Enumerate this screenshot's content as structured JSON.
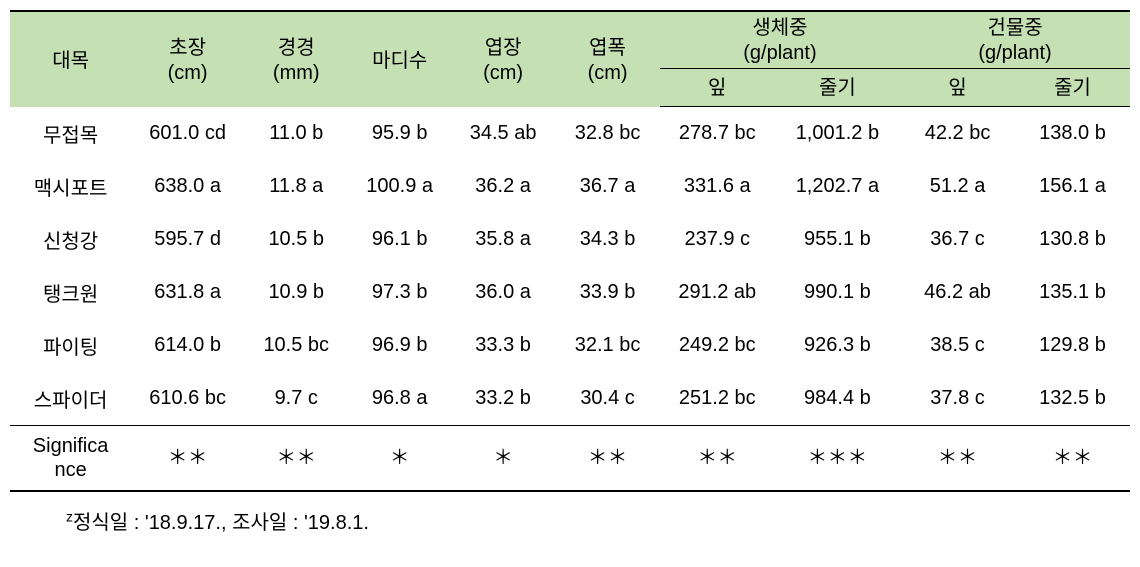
{
  "table": {
    "background_color": "#ffffff",
    "header_background_color": "#c5e0b3",
    "text_color": "#000000",
    "border_color": "#000000",
    "font_size_pt": 15,
    "columns": [
      {
        "label": "대목",
        "unit": ""
      },
      {
        "label": "초장",
        "unit": "(cm)"
      },
      {
        "label": "경경",
        "unit": "(mm)"
      },
      {
        "label": "마디수",
        "unit": ""
      },
      {
        "label": "엽장",
        "unit": "(cm)"
      },
      {
        "label": "엽폭",
        "unit": "(cm)"
      }
    ],
    "group_columns": [
      {
        "label": "생체중",
        "unit": "(g/plant)",
        "sub": [
          "잎",
          "줄기"
        ]
      },
      {
        "label": "건물중",
        "unit": "(g/plant)",
        "sub": [
          "잎",
          "줄기"
        ]
      }
    ],
    "rows": [
      {
        "c0": "무접목",
        "c1": "601.0 cd",
        "c2": "11.0 b",
        "c3": "95.9 b",
        "c4": "34.5 ab",
        "c5": "32.8 bc",
        "c6": "278.7 bc",
        "c7": "1,001.2 b",
        "c8": "42.2 bc",
        "c9": "138.0 b"
      },
      {
        "c0": "맥시포트",
        "c1": "638.0 a",
        "c2": "11.8 a",
        "c3": "100.9 a",
        "c4": "36.2 a",
        "c5": "36.7 a",
        "c6": "331.6 a",
        "c7": "1,202.7 a",
        "c8": "51.2 a",
        "c9": "156.1 a"
      },
      {
        "c0": "신청강",
        "c1": "595.7 d",
        "c2": "10.5 b",
        "c3": "96.1 b",
        "c4": "35.8 a",
        "c5": "34.3 b",
        "c6": "237.9 c",
        "c7": "955.1 b",
        "c8": "36.7 c",
        "c9": "130.8 b"
      },
      {
        "c0": "탱크원",
        "c1": "631.8 a",
        "c2": "10.9 b",
        "c3": "97.3 b",
        "c4": "36.0 a",
        "c5": "33.9 b",
        "c6": "291.2 ab",
        "c7": "990.1 b",
        "c8": "46.2 ab",
        "c9": "135.1 b"
      },
      {
        "c0": "파이팅",
        "c1": "614.0 b",
        "c2": "10.5 bc",
        "c3": "96.9 b",
        "c4": "33.3 b",
        "c5": "32.1 bc",
        "c6": "249.2 bc",
        "c7": "926.3 b",
        "c8": "38.5 c",
        "c9": "129.8 b"
      },
      {
        "c0": "스파이더",
        "c1": "610.6 bc",
        "c2": "9.7 c",
        "c3": "96.8 a",
        "c4": "33.2 b",
        "c5": "30.4 c",
        "c6": "251.2 bc",
        "c7": "984.4 b",
        "c8": "37.8 c",
        "c9": "132.5 b"
      }
    ],
    "significance": {
      "label": "Significa\nnce",
      "values": [
        "＊＊",
        "＊＊",
        "＊",
        "＊",
        "＊＊",
        "＊＊",
        "＊＊＊",
        "＊＊",
        "＊＊"
      ]
    },
    "footnote": {
      "super": "z",
      "text": "정식일 : '18.9.17., 조사일 : '19.8.1."
    }
  }
}
